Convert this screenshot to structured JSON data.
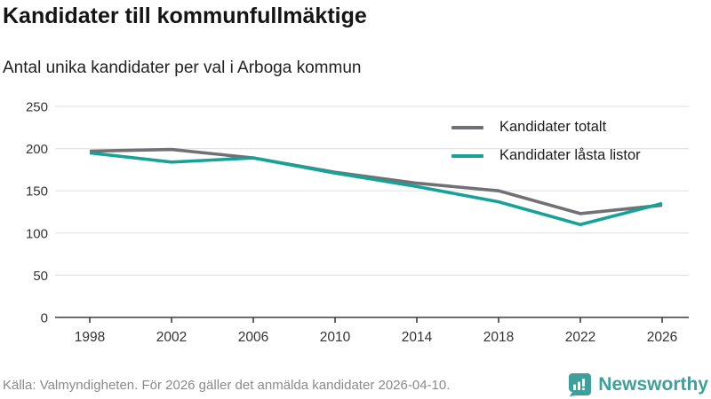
{
  "header": {
    "title": "Kandidater till kommunfullmäktige",
    "subtitle": "Antal unika kandidater per val i Arboga kommun"
  },
  "chart_data": {
    "type": "line",
    "x": [
      1998,
      2002,
      2006,
      2010,
      2014,
      2018,
      2022,
      2026
    ],
    "series": [
      {
        "name": "Kandidater totalt",
        "color": "#717074",
        "values": [
          197,
          199,
          189,
          172,
          159,
          150,
          123,
          133
        ]
      },
      {
        "name": "Kandidater låsta listor",
        "color": "#17a299",
        "values": [
          195,
          184,
          189,
          171,
          155,
          137,
          110,
          135
        ]
      }
    ],
    "title": "Kandidater till kommunfullmäktige",
    "subtitle": "Antal unika kandidater per val i Arboga kommun",
    "xlabel": "",
    "ylabel": "",
    "ylim": [
      0,
      250
    ],
    "yticks": [
      0,
      50,
      100,
      150,
      200,
      250
    ],
    "grid": true,
    "legend_position": "top-right"
  },
  "footer": {
    "source": "Källa: Valmyndigheten. För 2026 gäller det anmälda kandidater 2026-04-10.",
    "brand": "Newsworthy"
  },
  "colors": {
    "accent_teal": "#17a299",
    "line_gray": "#717074",
    "brand_teal": "#3f9f9b",
    "gridline": "#e3e3e3",
    "axis": "#3d3d3d",
    "tick_text": "#333333"
  }
}
